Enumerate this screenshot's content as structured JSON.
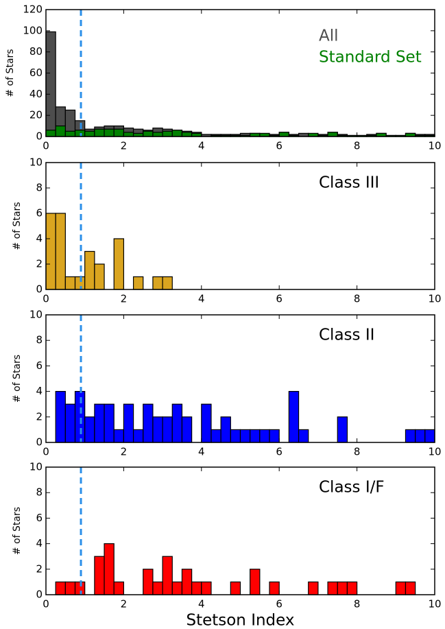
{
  "chart_data": [
    {
      "type": "histogram",
      "ylabel": "# of Stars",
      "bins": [
        0,
        0.25,
        0.5,
        0.75,
        1,
        1.25,
        1.5,
        1.75,
        2,
        2.25,
        2.5,
        2.75,
        3,
        3.25,
        3.5,
        3.75,
        4,
        4.25,
        4.5,
        4.75,
        5,
        5.25,
        5.5,
        5.75,
        6,
        6.25,
        6.5,
        6.75,
        7,
        7.25,
        7.5,
        7.75,
        8,
        8.25,
        8.5,
        8.75,
        9,
        9.25,
        9.5,
        9.75,
        10
      ],
      "series": [
        {
          "name": "All",
          "color": "#4d4d4d",
          "values": [
            99,
            28,
            25,
            15,
            7,
            9,
            10,
            10,
            8,
            7,
            6,
            8,
            7,
            6,
            5,
            4,
            2,
            2,
            2,
            2,
            3,
            3,
            2,
            2,
            4,
            2,
            3,
            2,
            2,
            4,
            2,
            1,
            1,
            2,
            3,
            1,
            1,
            3,
            2,
            2
          ]
        },
        {
          "name": "Standard Set",
          "color": "#008000",
          "values": [
            6,
            10,
            5,
            6,
            5,
            7,
            7,
            7,
            4,
            3,
            5,
            4,
            5,
            6,
            4,
            3,
            0,
            1,
            1,
            1,
            1,
            3,
            3,
            1,
            4,
            1,
            0,
            3,
            1,
            4,
            1,
            1,
            1,
            1,
            3,
            1,
            1,
            3,
            1,
            1
          ]
        }
      ],
      "xlim": [
        0,
        10
      ],
      "xticks": [
        0,
        2,
        4,
        6,
        8,
        10
      ],
      "ylim": [
        0,
        120
      ],
      "yticks": [
        0,
        20,
        40,
        60,
        80,
        100,
        120
      ],
      "vline": 0.9
    },
    {
      "type": "histogram",
      "title": "Class III",
      "ylabel": "# of Stars",
      "color": "#daa520",
      "bins": [
        0,
        0.25,
        0.5,
        0.75,
        1,
        1.25,
        1.5,
        1.75,
        2,
        2.25,
        2.5,
        2.75,
        3,
        3.25,
        3.5,
        3.75,
        4,
        4.25,
        4.5,
        4.75,
        5,
        5.25,
        5.5,
        5.75,
        6,
        6.25,
        6.5,
        6.75,
        7,
        7.25,
        7.5,
        7.75,
        8,
        8.25,
        8.5,
        8.75,
        9,
        9.25,
        9.5,
        9.75,
        10
      ],
      "values": [
        6,
        6,
        1,
        1,
        3,
        2,
        0,
        4,
        0,
        1,
        0,
        1,
        1,
        0,
        0,
        0,
        0,
        0,
        0,
        0,
        0,
        0,
        0,
        0,
        0,
        0,
        0,
        0,
        0,
        0,
        0,
        0,
        0,
        0,
        0,
        0,
        0,
        0,
        0,
        0
      ],
      "xlim": [
        0,
        10
      ],
      "xticks": [
        0,
        2,
        4,
        6,
        8,
        10
      ],
      "ylim": [
        0,
        10
      ],
      "yticks": [
        0,
        2,
        4,
        6,
        8,
        10
      ],
      "vline": 0.9
    },
    {
      "type": "histogram",
      "title": "Class II",
      "ylabel": "# of Stars",
      "color": "#0000ff",
      "bins": [
        0,
        0.25,
        0.5,
        0.75,
        1,
        1.25,
        1.5,
        1.75,
        2,
        2.25,
        2.5,
        2.75,
        3,
        3.25,
        3.5,
        3.75,
        4,
        4.25,
        4.5,
        4.75,
        5,
        5.25,
        5.5,
        5.75,
        6,
        6.25,
        6.5,
        6.75,
        7,
        7.25,
        7.5,
        7.75,
        8,
        8.25,
        8.5,
        8.75,
        9,
        9.25,
        9.5,
        9.75,
        10
      ],
      "values": [
        0,
        4,
        3,
        4,
        2,
        3,
        3,
        1,
        3,
        1,
        3,
        2,
        2,
        3,
        2,
        0,
        3,
        1,
        2,
        1,
        1,
        1,
        1,
        1,
        0,
        4,
        1,
        0,
        0,
        0,
        2,
        0,
        0,
        0,
        0,
        0,
        0,
        1,
        1,
        1
      ],
      "xlim": [
        0,
        10
      ],
      "xticks": [
        0,
        2,
        4,
        6,
        8,
        10
      ],
      "ylim": [
        0,
        10
      ],
      "yticks": [
        0,
        2,
        4,
        6,
        8,
        10
      ],
      "vline": 0.9
    },
    {
      "type": "histogram",
      "title": "Class I/F",
      "ylabel": "# of Stars",
      "xlabel": "Stetson Index",
      "color": "#ff0000",
      "bins": [
        0,
        0.25,
        0.5,
        0.75,
        1,
        1.25,
        1.5,
        1.75,
        2,
        2.25,
        2.5,
        2.75,
        3,
        3.25,
        3.5,
        3.75,
        4,
        4.25,
        4.5,
        4.75,
        5,
        5.25,
        5.5,
        5.75,
        6,
        6.25,
        6.5,
        6.75,
        7,
        7.25,
        7.5,
        7.75,
        8,
        8.25,
        8.5,
        8.75,
        9,
        9.25,
        9.5,
        9.75,
        10
      ],
      "values": [
        0,
        1,
        1,
        1,
        0,
        3,
        4,
        1,
        0,
        0,
        2,
        1,
        3,
        1,
        2,
        1,
        1,
        0,
        0,
        1,
        0,
        2,
        0,
        1,
        0,
        0,
        0,
        1,
        0,
        1,
        1,
        1,
        0,
        0,
        0,
        0,
        1,
        1,
        0,
        0
      ],
      "xlim": [
        0,
        10
      ],
      "xticks": [
        0,
        2,
        4,
        6,
        8,
        10
      ],
      "ylim": [
        0,
        10
      ],
      "yticks": [
        0,
        2,
        4,
        6,
        8,
        10
      ],
      "vline": 0.9
    }
  ]
}
